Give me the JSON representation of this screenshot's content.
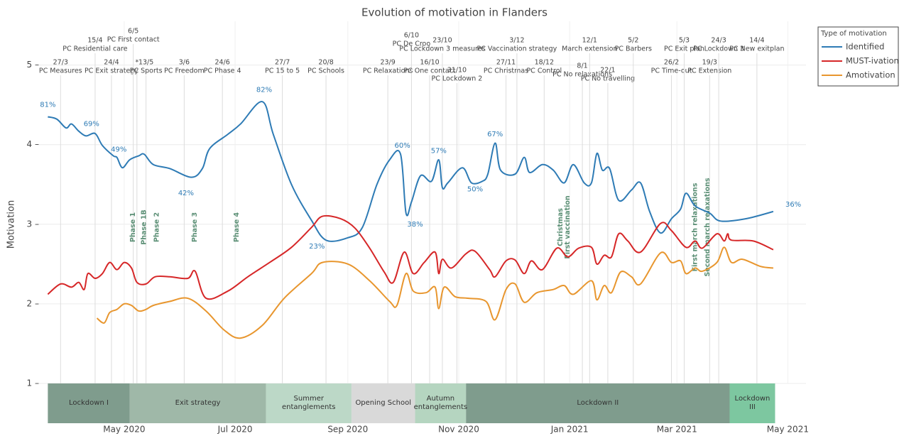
{
  "chart_data": {
    "type": "line",
    "title": "Evolution of motivation in Flanders",
    "y_label": "Motivation",
    "xlim": [
      "2020-03-14",
      "2021-05-11"
    ],
    "ylim": [
      0.5,
      5.55
    ],
    "xticks": [
      {
        "value": "2020-05-01",
        "label": "May 2020"
      },
      {
        "value": "2020-07-01",
        "label": "Jul 2020"
      },
      {
        "value": "2020-09-01",
        "label": "Sep 2020"
      },
      {
        "value": "2020-11-01",
        "label": "Nov 2020"
      },
      {
        "value": "2021-01-01",
        "label": "Jan 2021"
      },
      {
        "value": "2021-03-01",
        "label": "Mar 2021"
      },
      {
        "value": "2021-05-01",
        "label": "May 2021"
      }
    ],
    "yticks": [
      {
        "value": 1,
        "label": "1 –"
      },
      {
        "value": 2,
        "label": "2 –"
      },
      {
        "value": 3,
        "label": "3 –"
      },
      {
        "value": 4,
        "label": "4 –"
      },
      {
        "value": 5,
        "label": "5 –"
      }
    ],
    "grid": true,
    "legend": {
      "title": "Type of motivation",
      "position": "right"
    },
    "series": [
      {
        "name": "Identified",
        "color": "#2e7bb5",
        "x": [
          "2020-03-20",
          "2020-03-25",
          "2020-03-30",
          "2020-04-02",
          "2020-04-06",
          "2020-04-10",
          "2020-04-15",
          "2020-04-19",
          "2020-04-25",
          "2020-04-27",
          "2020-04-30",
          "2020-05-04",
          "2020-05-09",
          "2020-05-12",
          "2020-05-17",
          "2020-05-26",
          "2020-06-07",
          "2020-06-13",
          "2020-06-17",
          "2020-06-27",
          "2020-07-04",
          "2020-07-16",
          "2020-07-22",
          "2020-08-01",
          "2020-08-12",
          "2020-08-20",
          "2020-09-01",
          "2020-09-09",
          "2020-09-17",
          "2020-09-24",
          "2020-09-30",
          "2020-10-03",
          "2020-10-06",
          "2020-10-11",
          "2020-10-17",
          "2020-10-21",
          "2020-10-23",
          "2020-10-26",
          "2020-11-03",
          "2020-11-08",
          "2020-11-14",
          "2020-11-17",
          "2020-11-21",
          "2020-11-24",
          "2020-12-02",
          "2020-12-07",
          "2020-12-10",
          "2020-12-17",
          "2020-12-23",
          "2020-12-29",
          "2021-01-03",
          "2021-01-09",
          "2021-01-13",
          "2021-01-16",
          "2021-01-19",
          "2021-01-23",
          "2021-01-28",
          "2021-02-04",
          "2021-02-09",
          "2021-02-14",
          "2021-02-20",
          "2021-02-26",
          "2021-03-03",
          "2021-03-06",
          "2021-03-11",
          "2021-03-19",
          "2021-03-25",
          "2021-04-08",
          "2021-04-23"
        ],
        "values": [
          4.35,
          4.32,
          4.21,
          4.26,
          4.17,
          4.11,
          4.14,
          3.99,
          3.86,
          3.84,
          3.71,
          3.81,
          3.86,
          3.88,
          3.75,
          3.7,
          3.59,
          3.7,
          3.95,
          4.13,
          4.26,
          4.54,
          4.13,
          3.5,
          3.05,
          2.8,
          2.83,
          2.96,
          3.5,
          3.81,
          3.88,
          3.14,
          3.28,
          3.61,
          3.54,
          3.81,
          3.46,
          3.52,
          3.71,
          3.52,
          3.54,
          3.63,
          4.02,
          3.68,
          3.63,
          3.84,
          3.65,
          3.75,
          3.68,
          3.52,
          3.75,
          3.52,
          3.52,
          3.89,
          3.68,
          3.7,
          3.3,
          3.43,
          3.52,
          3.16,
          2.89,
          3.07,
          3.19,
          3.39,
          3.23,
          3.14,
          3.04,
          3.07,
          3.16
        ]
      },
      {
        "name": "MUST-ivation",
        "color": "#d62728",
        "x": [
          "2020-03-20",
          "2020-03-27",
          "2020-04-02",
          "2020-04-06",
          "2020-04-09",
          "2020-04-11",
          "2020-04-15",
          "2020-04-19",
          "2020-04-23",
          "2020-04-27",
          "2020-05-01",
          "2020-05-05",
          "2020-05-08",
          "2020-05-13",
          "2020-05-18",
          "2020-05-26",
          "2020-06-05",
          "2020-06-09",
          "2020-06-15",
          "2020-06-27",
          "2020-07-08",
          "2020-07-20",
          "2020-08-01",
          "2020-08-12",
          "2020-08-18",
          "2020-08-28",
          "2020-09-05",
          "2020-09-13",
          "2020-09-21",
          "2020-09-26",
          "2020-10-02",
          "2020-10-07",
          "2020-10-13",
          "2020-10-19",
          "2020-10-21",
          "2020-10-23",
          "2020-10-28",
          "2020-11-05",
          "2020-11-10",
          "2020-11-18",
          "2020-11-21",
          "2020-11-27",
          "2020-12-02",
          "2020-12-07",
          "2020-12-11",
          "2020-12-17",
          "2020-12-25",
          "2020-12-31",
          "2021-01-06",
          "2021-01-13",
          "2021-01-16",
          "2021-01-20",
          "2021-01-24",
          "2021-01-28",
          "2021-02-02",
          "2021-02-09",
          "2021-02-20",
          "2021-02-26",
          "2021-03-06",
          "2021-03-11",
          "2021-03-15",
          "2021-03-23",
          "2021-03-27",
          "2021-03-29",
          "2021-03-31",
          "2021-04-12",
          "2021-04-23"
        ],
        "values": [
          2.12,
          2.25,
          2.21,
          2.27,
          2.18,
          2.38,
          2.32,
          2.38,
          2.52,
          2.43,
          2.52,
          2.45,
          2.27,
          2.25,
          2.34,
          2.34,
          2.32,
          2.41,
          2.07,
          2.16,
          2.34,
          2.52,
          2.71,
          2.96,
          3.1,
          3.07,
          2.95,
          2.7,
          2.4,
          2.27,
          2.65,
          2.38,
          2.52,
          2.65,
          2.38,
          2.56,
          2.45,
          2.63,
          2.66,
          2.43,
          2.34,
          2.54,
          2.55,
          2.38,
          2.54,
          2.43,
          2.7,
          2.59,
          2.7,
          2.71,
          2.5,
          2.61,
          2.59,
          2.88,
          2.79,
          2.65,
          3.01,
          2.92,
          2.71,
          2.79,
          2.7,
          2.88,
          2.79,
          2.88,
          2.8,
          2.79,
          2.68
        ]
      },
      {
        "name": "Amotivation",
        "color": "#e8962e",
        "x": [
          "2020-04-16",
          "2020-04-20",
          "2020-04-23",
          "2020-04-27",
          "2020-05-01",
          "2020-05-05",
          "2020-05-09",
          "2020-05-13",
          "2020-05-17",
          "2020-05-26",
          "2020-06-05",
          "2020-06-15",
          "2020-06-25",
          "2020-07-04",
          "2020-07-16",
          "2020-07-28",
          "2020-08-12",
          "2020-08-18",
          "2020-09-01",
          "2020-09-13",
          "2020-09-24",
          "2020-09-28",
          "2020-10-03",
          "2020-10-07",
          "2020-10-14",
          "2020-10-19",
          "2020-10-21",
          "2020-10-24",
          "2020-10-30",
          "2020-11-06",
          "2020-11-16",
          "2020-11-21",
          "2020-11-27",
          "2020-12-02",
          "2020-12-07",
          "2020-12-14",
          "2020-12-23",
          "2020-12-29",
          "2021-01-03",
          "2021-01-13",
          "2021-01-16",
          "2021-01-20",
          "2021-01-24",
          "2021-01-29",
          "2021-02-04",
          "2021-02-09",
          "2021-02-20",
          "2021-02-26",
          "2021-03-03",
          "2021-03-06",
          "2021-03-11",
          "2021-03-15",
          "2021-03-23",
          "2021-03-27",
          "2021-03-31",
          "2021-04-06",
          "2021-04-16",
          "2021-04-23"
        ],
        "values": [
          1.82,
          1.76,
          1.89,
          1.93,
          2.0,
          1.98,
          1.91,
          1.93,
          1.98,
          2.03,
          2.07,
          1.91,
          1.67,
          1.57,
          1.73,
          2.07,
          2.38,
          2.52,
          2.5,
          2.29,
          2.03,
          1.98,
          2.38,
          2.16,
          2.14,
          2.21,
          1.94,
          2.21,
          2.09,
          2.07,
          2.03,
          1.8,
          2.18,
          2.25,
          2.02,
          2.14,
          2.18,
          2.23,
          2.12,
          2.29,
          2.05,
          2.23,
          2.14,
          2.4,
          2.34,
          2.25,
          2.64,
          2.52,
          2.54,
          2.38,
          2.45,
          2.41,
          2.52,
          2.71,
          2.52,
          2.56,
          2.47,
          2.45
        ]
      }
    ],
    "value_annotations": [
      {
        "text": "81%",
        "x": "2020-03-20",
        "y": 4.5
      },
      {
        "text": "69%",
        "x": "2020-04-13",
        "y": 4.26
      },
      {
        "text": "49%",
        "x": "2020-04-28",
        "y": 3.94
      },
      {
        "text": "42%",
        "x": "2020-06-04",
        "y": 3.39
      },
      {
        "text": "82%",
        "x": "2020-07-17",
        "y": 4.69
      },
      {
        "text": "23%",
        "x": "2020-08-15",
        "y": 2.72
      },
      {
        "text": "60%",
        "x": "2020-10-01",
        "y": 3.99
      },
      {
        "text": "38%",
        "x": "2020-10-08",
        "y": 3.0
      },
      {
        "text": "57%",
        "x": "2020-10-21",
        "y": 3.92
      },
      {
        "text": "50%",
        "x": "2020-11-10",
        "y": 3.44
      },
      {
        "text": "67%",
        "x": "2020-11-21",
        "y": 4.13
      },
      {
        "text": "36%",
        "x": "2021-05-04",
        "y": 3.25
      }
    ],
    "events": [
      {
        "date_label": "27/3",
        "text": "PC Measures",
        "x": "2020-03-27"
      },
      {
        "date_label": "15/4",
        "text": "PC Residential care",
        "x": "2020-04-15"
      },
      {
        "date_label": "24/4",
        "text": "PC Exit strategy",
        "x": "2020-04-24"
      },
      {
        "date_label": "6/5",
        "text": "PC First contact",
        "x": "2020-05-06"
      },
      {
        "text": "*",
        "x": "2020-05-08"
      },
      {
        "date_label": "13/5",
        "text": "PC Sports",
        "x": "2020-05-13"
      },
      {
        "date_label": "3/6",
        "text": "PC Freedom",
        "x": "2020-06-03"
      },
      {
        "date_label": "24/6",
        "text": "PC Phase 4",
        "x": "2020-06-24"
      },
      {
        "date_label": "27/7",
        "text": "PC 15 to 5",
        "x": "2020-07-27"
      },
      {
        "date_label": "20/8",
        "text": "PC Schools",
        "x": "2020-08-20"
      },
      {
        "date_label": "23/9",
        "text": "PC Relaxations",
        "x": "2020-09-23"
      },
      {
        "date_label": "6/10",
        "text": "PC De Croo",
        "x": "2020-10-06"
      },
      {
        "date_label": "16/10",
        "text": "PC One contact",
        "x": "2020-10-16"
      },
      {
        "date_label": "23/10",
        "text": "PC Lockdown 3 measures",
        "x": "2020-10-23"
      },
      {
        "date_label": "31/10",
        "text": "PC Lockdown 2",
        "x": "2020-10-31"
      },
      {
        "date_label": "27/11",
        "text": "PC Christmas",
        "x": "2020-11-27"
      },
      {
        "date_label": "3/12",
        "text": "PC Vaccination strategy",
        "x": "2020-12-03"
      },
      {
        "date_label": "18/12",
        "text": "PC Control",
        "x": "2020-12-18"
      },
      {
        "date_label": "8/1",
        "text": "PC No relaxations",
        "x": "2021-01-08"
      },
      {
        "date_label": "12/1",
        "text": "March extension",
        "x": "2021-01-12"
      },
      {
        "date_label": "22/1",
        "text": "PC No travelling",
        "x": "2021-01-22"
      },
      {
        "date_label": "5/2",
        "text": "PC Barbers",
        "x": "2021-02-05"
      },
      {
        "date_label": "26/2",
        "text": "PC Time-out",
        "x": "2021-02-26"
      },
      {
        "date_label": "5/3",
        "text": "PC Exit plan",
        "x": "2021-03-05"
      },
      {
        "date_label": "19/3",
        "text": "PC Extension",
        "x": "2021-03-19"
      },
      {
        "date_label": "24/3",
        "text": "PC Lockdown 3",
        "x": "2021-03-24"
      },
      {
        "date_label": "14/4",
        "text": "PC New exitplan",
        "x": "2021-04-14"
      }
    ],
    "milestones": [
      {
        "text": "Phase 1",
        "x": "2020-05-06"
      },
      {
        "text": "Phase 1B",
        "x": "2020-05-12"
      },
      {
        "text": "Phase 2",
        "x": "2020-05-19"
      },
      {
        "text": "Phase 3",
        "x": "2020-06-09"
      },
      {
        "text": "Phase 4",
        "x": "2020-07-02"
      },
      {
        "text": "Christmas",
        "x": "2020-12-27"
      },
      {
        "text": "First vaccination",
        "x": "2020-12-31"
      },
      {
        "text": "First march relaxations",
        "x": "2021-03-11"
      },
      {
        "text": "Second march relaxations",
        "x": "2021-03-18"
      }
    ],
    "periods": [
      {
        "label": "Lockdown I",
        "start": "2020-03-20",
        "end": "2020-05-04",
        "color": "#7f9c8d"
      },
      {
        "label": "Exit strategy",
        "start": "2020-05-04",
        "end": "2020-07-18",
        "color": "#9fb8a8"
      },
      {
        "label": "Summer entanglements",
        "start": "2020-07-18",
        "end": "2020-09-03",
        "color": "#bcd8c7"
      },
      {
        "label": "Opening School",
        "start": "2020-09-03",
        "end": "2020-10-08",
        "color": "#d9d9d9"
      },
      {
        "label": "Autumn entanglements",
        "start": "2020-10-08",
        "end": "2020-11-05",
        "color": "#b5d5c0"
      },
      {
        "label": "Lockdown II",
        "start": "2020-11-05",
        "end": "2021-03-30",
        "color": "#7f9c8d"
      },
      {
        "label": "Lockdown III",
        "start": "2021-03-30",
        "end": "2021-04-24",
        "color": "#7dc7a0"
      }
    ]
  }
}
